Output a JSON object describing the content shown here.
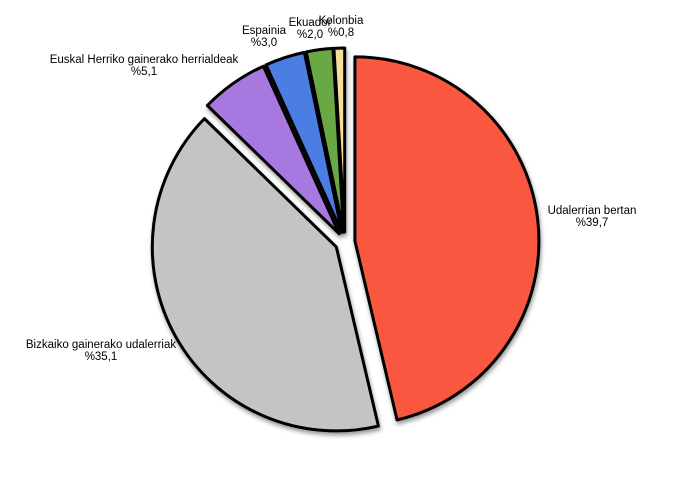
{
  "chart_data": {
    "type": "pie",
    "title": "",
    "value_prefix": "%",
    "decimal_separator": ",",
    "background": "#FFFFFF",
    "outline_color": "#000000",
    "layout_hints": {
      "exploded": true,
      "start_angle_deg": 0,
      "direction": "clockwise",
      "labels_position": "outside",
      "legend": "none"
    },
    "slices": [
      {
        "label": "Udalerrian bertan",
        "value": 39.7,
        "pct_label": "%39,7",
        "color": "#F95740"
      },
      {
        "label": "Bizkaiko gainerako udalerriak",
        "value": 35.1,
        "pct_label": "%35,1",
        "color": "#C4C4C4"
      },
      {
        "label": "Euskal Herriko gainerako herrialdeak",
        "value": 5.1,
        "pct_label": "%5,1",
        "color": "#A779E0"
      },
      {
        "label": "Espainia",
        "value": 3.0,
        "pct_label": "%3,0",
        "color": "#4C7DE2"
      },
      {
        "label": "Ekuador",
        "value": 2.0,
        "pct_label": "%2,0",
        "color": "#6AA845"
      },
      {
        "label": "Kolonbia",
        "value": 0.8,
        "pct_label": "%0,8",
        "color": "#F5DE9C"
      }
    ]
  }
}
